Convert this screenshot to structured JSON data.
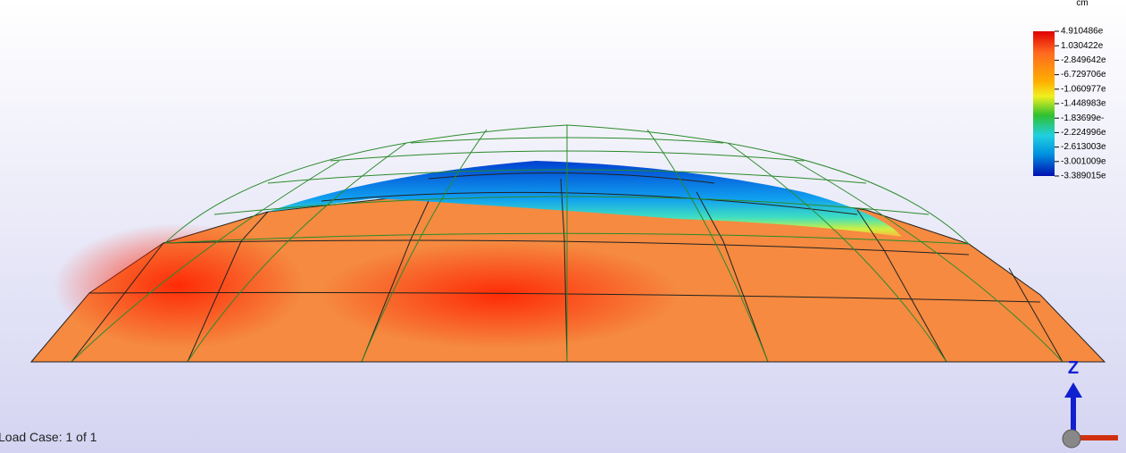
{
  "legend": {
    "unit": "cm",
    "labels": [
      "4.910486e",
      "1.030422e",
      "-2.849642e",
      "-6.729706e",
      "-1.060977e",
      "-1.448983e",
      "-1.83699e-",
      "-2.224996e",
      "-2.613003e",
      "-3.001009e",
      "-3.389015e"
    ]
  },
  "viewport": {
    "axis_label": "Z"
  },
  "status": {
    "load_case": "Load Case:  1 of 1"
  }
}
